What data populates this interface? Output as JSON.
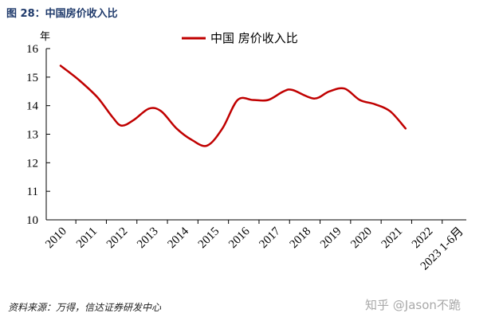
{
  "figure": {
    "title": "图 28：中国房价收入比",
    "source": "资料来源：万得，信达证券研发中心",
    "watermark": "知乎 @Jason不跪"
  },
  "chart_data": {
    "type": "line",
    "ylabel": "年",
    "ylim": [
      10,
      16
    ],
    "yticks": [
      10,
      11,
      12,
      13,
      14,
      15,
      16
    ],
    "categories": [
      "2010",
      "2011",
      "2012",
      "2013",
      "2014",
      "2015",
      "2016",
      "2017",
      "2018",
      "2019",
      "2020",
      "2021",
      "2022",
      "2023 1-6月"
    ],
    "grid": false,
    "legend_position": "top-center",
    "series": [
      {
        "name": "中国 房价收入比",
        "color": "#c00000",
        "points": [
          {
            "x": 2010.0,
            "y": 15.4
          },
          {
            "x": 2010.6,
            "y": 14.9
          },
          {
            "x": 2011.2,
            "y": 14.3
          },
          {
            "x": 2011.7,
            "y": 13.6
          },
          {
            "x": 2012.0,
            "y": 13.3
          },
          {
            "x": 2012.4,
            "y": 13.5
          },
          {
            "x": 2012.9,
            "y": 13.9
          },
          {
            "x": 2013.3,
            "y": 13.8
          },
          {
            "x": 2013.8,
            "y": 13.2
          },
          {
            "x": 2014.3,
            "y": 12.8
          },
          {
            "x": 2014.8,
            "y": 12.6
          },
          {
            "x": 2015.3,
            "y": 13.2
          },
          {
            "x": 2015.8,
            "y": 14.2
          },
          {
            "x": 2016.3,
            "y": 14.2
          },
          {
            "x": 2016.8,
            "y": 14.2
          },
          {
            "x": 2017.3,
            "y": 14.5
          },
          {
            "x": 2017.6,
            "y": 14.55
          },
          {
            "x": 2018.3,
            "y": 14.25
          },
          {
            "x": 2018.8,
            "y": 14.5
          },
          {
            "x": 2019.3,
            "y": 14.6
          },
          {
            "x": 2019.8,
            "y": 14.2
          },
          {
            "x": 2020.3,
            "y": 14.05
          },
          {
            "x": 2020.8,
            "y": 13.8
          },
          {
            "x": 2021.3,
            "y": 13.2
          }
        ]
      }
    ]
  }
}
